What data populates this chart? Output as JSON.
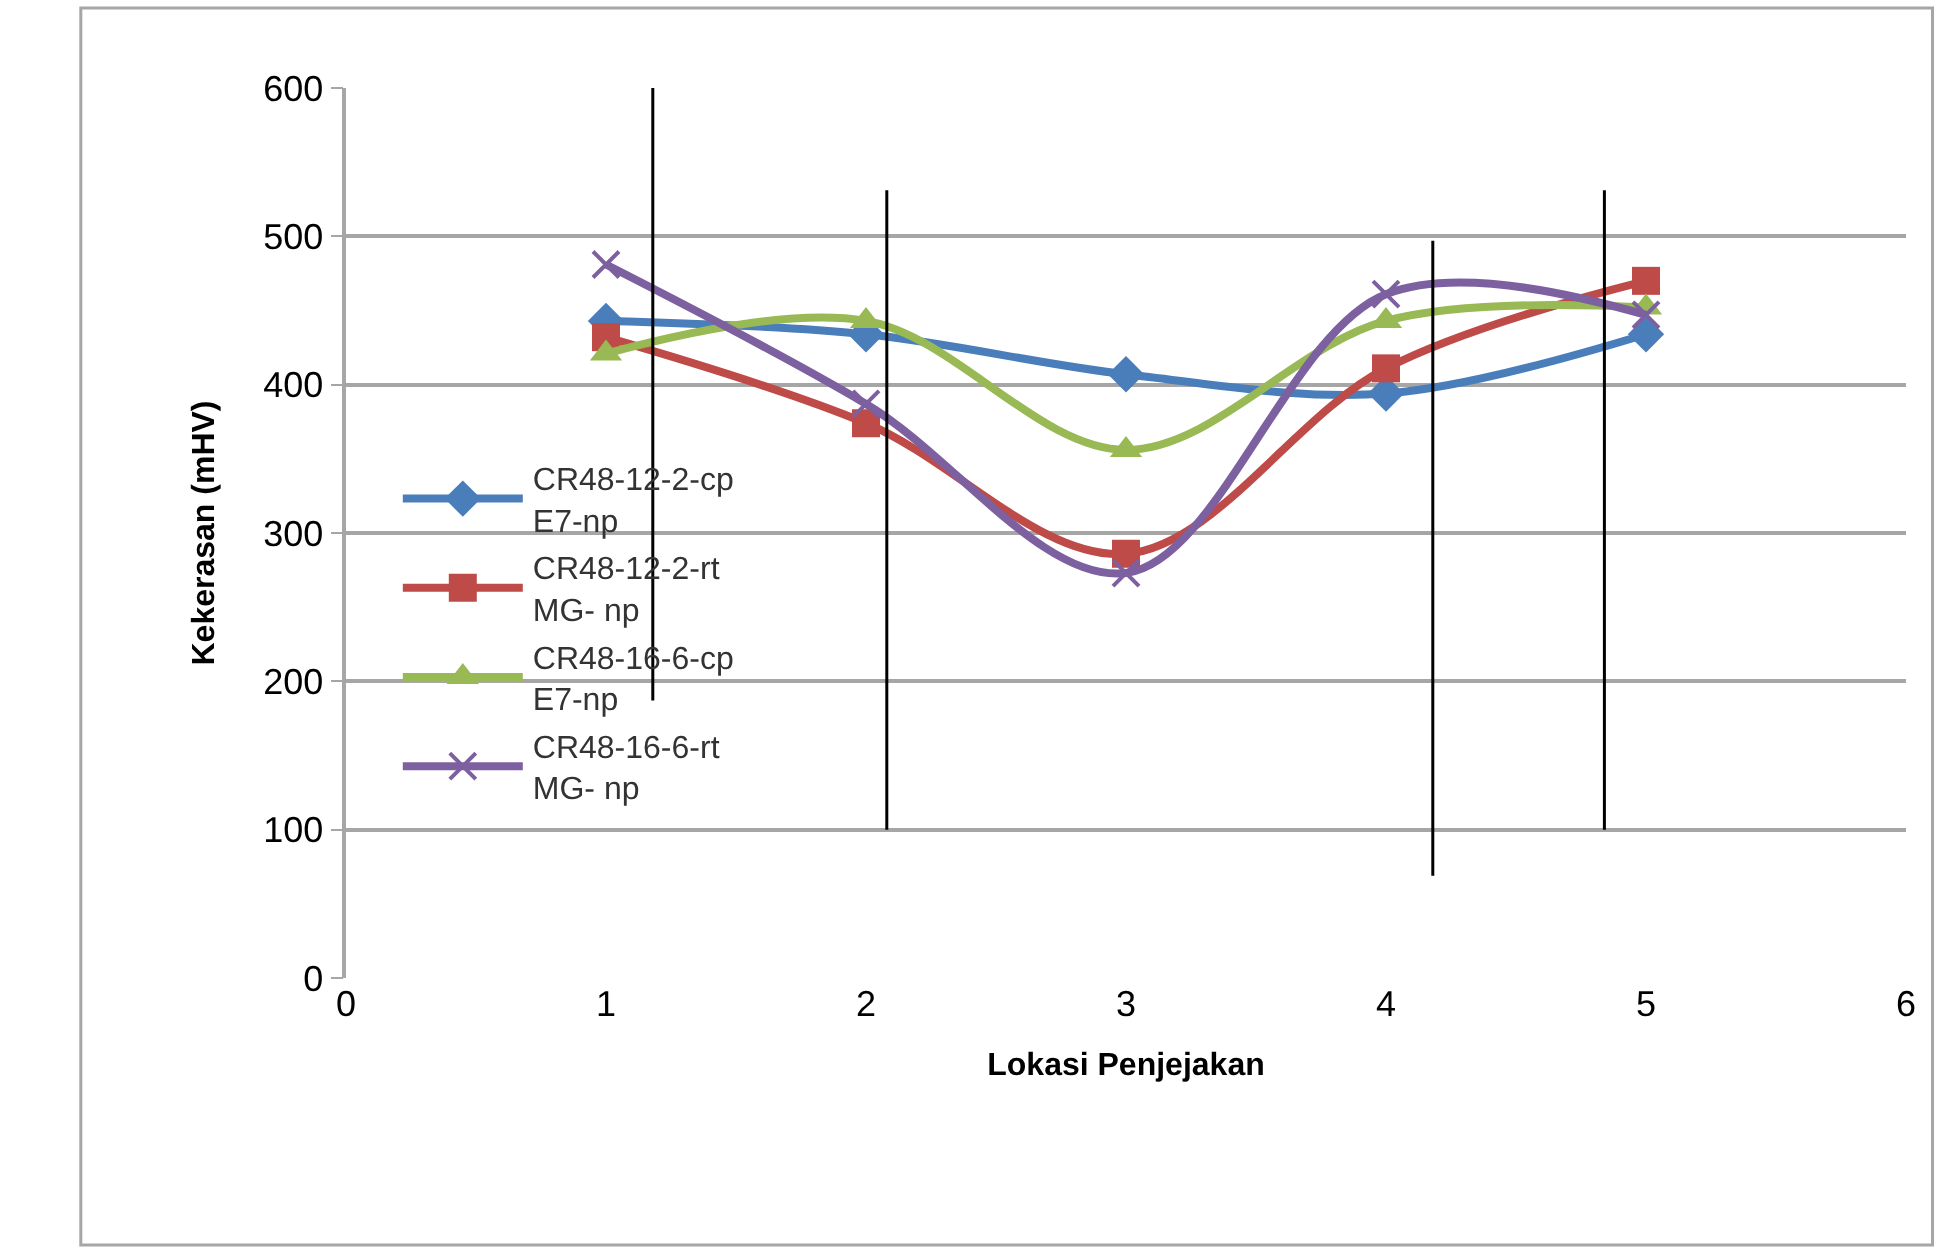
{
  "chart_data": {
    "type": "line",
    "xlabel": "Lokasi Penjejakan",
    "ylabel": "Kekerasan (mHV)",
    "x": [
      1,
      2,
      3,
      4,
      5
    ],
    "xlim": [
      0,
      6
    ],
    "xticks": [
      0,
      1,
      2,
      3,
      4,
      5,
      6
    ],
    "ylim": [
      0,
      600
    ],
    "yticks": [
      0,
      100,
      200,
      300,
      400,
      500,
      600
    ],
    "grid": "y",
    "legend": "left",
    "series": [
      {
        "name": "CR48-12-2-cp E7-np",
        "color": "#4a7ebb",
        "marker": "diamond",
        "values": [
          443,
          434,
          407,
          394,
          434
        ]
      },
      {
        "name": "CR48-12-2-rt MG- np",
        "color": "#be4b48",
        "marker": "square",
        "values": [
          432,
          374,
          286,
          411,
          470
        ]
      },
      {
        "name": "CR48-16-6-cp E7-np",
        "color": "#98b954",
        "marker": "triangle",
        "values": [
          421,
          443,
          356,
          443,
          452
        ]
      },
      {
        "name": "CR48-16-6-rt MG- np",
        "color": "#7d60a0",
        "marker": "cross",
        "values": [
          481,
          387,
          273,
          461,
          447
        ]
      },
      {
        "color": "#000000",
        "marker": "none",
        "x": [
          1.18,
          1.18
        ],
        "values": [
          187,
          600
        ]
      },
      {
        "color": "#000000",
        "marker": "none",
        "x": [
          2.08,
          2.08
        ],
        "values": [
          100,
          531
        ]
      },
      {
        "color": "#000000",
        "marker": "none",
        "x": [
          4.18,
          4.18
        ],
        "values": [
          69,
          497
        ]
      },
      {
        "color": "#000000",
        "marker": "none",
        "x": [
          4.84,
          4.84
        ],
        "values": [
          100,
          531
        ]
      }
    ]
  }
}
